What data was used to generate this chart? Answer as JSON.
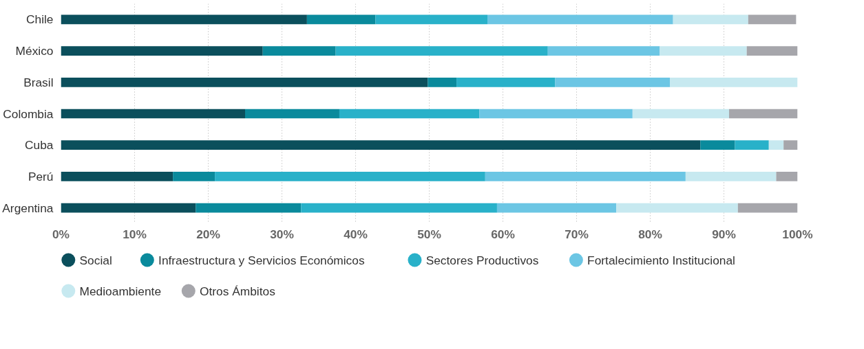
{
  "chart_data": {
    "type": "bar",
    "orientation": "horizontal",
    "stacked": true,
    "categories": [
      "Chile",
      "México",
      "Brasil",
      "Colombia",
      "Cuba",
      "Perú",
      "Argentina"
    ],
    "series": [
      {
        "name": "Social",
        "color": "#0b4f5c",
        "values": [
          33.4,
          27.4,
          49.8,
          25.0,
          86.8,
          15.2,
          18.3
        ]
      },
      {
        "name": "Infraestructura y Servicios Económicos",
        "color": "#0a8a9c",
        "values": [
          9.3,
          9.9,
          3.9,
          12.8,
          4.7,
          5.7,
          14.3
        ]
      },
      {
        "name": "Sectores Productivos",
        "color": "#29b1c9",
        "values": [
          15.2,
          28.8,
          13.4,
          19.0,
          4.6,
          36.7,
          26.6
        ]
      },
      {
        "name": "Fortalecimiento Institucional",
        "color": "#6cc6e4",
        "values": [
          25.2,
          15.2,
          15.6,
          20.8,
          0,
          27.2,
          16.2
        ]
      },
      {
        "name": "Medioambiente",
        "color": "#c7e9f0",
        "values": [
          10.2,
          11.8,
          17.3,
          13.1,
          2.0,
          12.3,
          16.5
        ]
      },
      {
        "name": "Otros Ámbitos",
        "color": "#a6a6ab",
        "values": [
          6.5,
          6.9,
          0,
          9.3,
          1.9,
          2.9,
          8.1
        ]
      }
    ],
    "xlim": [
      0,
      100
    ],
    "xticks": [
      {
        "value": 0,
        "label": "0%"
      },
      {
        "value": 10,
        "label": "10%"
      },
      {
        "value": 20,
        "label": "20%"
      },
      {
        "value": 30,
        "label": "30%"
      },
      {
        "value": 40,
        "label": "40%"
      },
      {
        "value": 50,
        "label": "50%"
      },
      {
        "value": 60,
        "label": "60%"
      },
      {
        "value": 70,
        "label": "70%"
      },
      {
        "value": 80,
        "label": "80%"
      },
      {
        "value": 90,
        "label": "90%"
      },
      {
        "value": 100,
        "label": "100%"
      }
    ],
    "grid": "x",
    "legend": "bottom"
  }
}
